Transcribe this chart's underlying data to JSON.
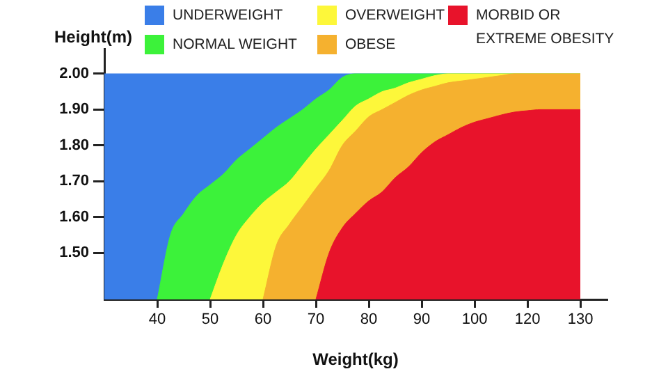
{
  "chart_data": {
    "type": "area",
    "xlabel": "Weight(kg)",
    "ylabel": "Height(m)",
    "categories": [
      null,
      null,
      null,
      null,
      "40",
      null,
      null,
      null,
      "50",
      null,
      null,
      null,
      "60",
      null,
      null,
      null,
      "70",
      null,
      null,
      null,
      "80",
      null,
      null,
      null,
      "90",
      null,
      null,
      null,
      "100",
      null,
      null,
      null,
      "120",
      null,
      null,
      null,
      "130",
      null,
      null
    ],
    "ylim": [
      1.37,
      2.07
    ],
    "yticks": [
      {
        "value": 1.5,
        "label": "1.50"
      },
      {
        "value": 1.6,
        "label": "1.60"
      },
      {
        "value": 1.7,
        "label": "1.70"
      },
      {
        "value": 1.8,
        "label": "1.80"
      },
      {
        "value": 1.9,
        "label": "1.90"
      },
      {
        "value": 2,
        "label": "2.00"
      }
    ],
    "legend": "top",
    "series": [
      {
        "name": "UNDERWEIGHT",
        "color": "#3a7ee8",
        "values": [
          2,
          2,
          2,
          2,
          2,
          2,
          2,
          2,
          2,
          2,
          2,
          2,
          2,
          2,
          2,
          2,
          2,
          2,
          2,
          2,
          2,
          2,
          2,
          2,
          2,
          2,
          2,
          2,
          2,
          2,
          2,
          2,
          2,
          2,
          2,
          2,
          2,
          null,
          null
        ]
      },
      {
        "name": "NORMAL WEIGHT",
        "color": "#3cf23a",
        "values": [
          null,
          null,
          null,
          null,
          1.37,
          1.55,
          1.61,
          1.66,
          1.69,
          1.72,
          1.76,
          1.79,
          1.82,
          1.85,
          1.875,
          1.9,
          1.93,
          1.955,
          1.99,
          2,
          2,
          2,
          2,
          2,
          2,
          2,
          2,
          2,
          2,
          2,
          2,
          2,
          2,
          2,
          2,
          2,
          2,
          null,
          null
        ]
      },
      {
        "name": "OVERWEIGHT",
        "color": "#fdf73a",
        "values": [
          null,
          null,
          null,
          null,
          null,
          null,
          null,
          null,
          1.37,
          1.47,
          1.55,
          1.6,
          1.64,
          1.67,
          1.7,
          1.745,
          1.79,
          1.83,
          1.87,
          1.91,
          1.93,
          1.95,
          1.96,
          1.975,
          1.985,
          1.995,
          2,
          2,
          2,
          2,
          2,
          2,
          2,
          2,
          2,
          2,
          2,
          null,
          null
        ]
      },
      {
        "name": "OBESE",
        "color": "#f5b12f",
        "values": [
          null,
          null,
          null,
          null,
          null,
          null,
          null,
          null,
          null,
          null,
          null,
          null,
          1.37,
          1.52,
          1.58,
          1.63,
          1.68,
          1.73,
          1.8,
          1.84,
          1.88,
          1.9,
          1.92,
          1.94,
          1.955,
          1.965,
          1.975,
          1.98,
          1.985,
          1.99,
          1.995,
          2,
          2,
          2,
          2,
          2,
          2,
          null,
          null
        ]
      },
      {
        "name": "MORBID OR EXTREME OBESITY",
        "color": "#e8132b",
        "values": [
          null,
          null,
          null,
          null,
          null,
          null,
          null,
          null,
          null,
          null,
          null,
          null,
          null,
          null,
          null,
          null,
          1.37,
          1.5,
          1.57,
          1.61,
          1.645,
          1.67,
          1.71,
          1.74,
          1.78,
          1.81,
          1.83,
          1.85,
          1.865,
          1.875,
          1.885,
          1.893,
          1.897,
          1.9,
          1.9,
          1.9,
          1.9,
          null,
          null
        ]
      }
    ]
  }
}
